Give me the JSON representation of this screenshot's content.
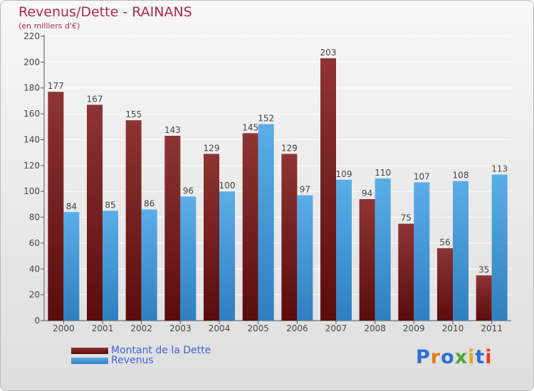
{
  "chart_data": {
    "type": "bar",
    "title": "Revenus/Dette - RAINANS",
    "subtitle": "(en milliers d'€)",
    "categories": [
      "2000",
      "2001",
      "2002",
      "2003",
      "2004",
      "2005",
      "2006",
      "2007",
      "2008",
      "2009",
      "2010",
      "2011"
    ],
    "series": [
      {
        "name": "Montant de la Dette",
        "values": [
          177,
          167,
          155,
          143,
          129,
          145,
          129,
          203,
          94,
          75,
          56,
          35
        ],
        "color": "#7a1e1e"
      },
      {
        "name": "Revenus",
        "values": [
          84,
          85,
          86,
          96,
          100,
          152,
          97,
          109,
          110,
          107,
          108,
          113
        ],
        "color": "#4a9fe0"
      }
    ],
    "yticks": [
      0,
      20,
      40,
      60,
      80,
      100,
      120,
      140,
      160,
      180,
      200,
      220
    ],
    "ylim": [
      0,
      220
    ],
    "grid": true,
    "legend": "bottom-left"
  },
  "logo": {
    "text": "Proxiti",
    "colors": [
      "#2e6fd6",
      "#e07a1f",
      "#2e6fd6",
      "#47a83a",
      "#e0a81f",
      "#2e6fd6",
      "#e0401f"
    ]
  }
}
